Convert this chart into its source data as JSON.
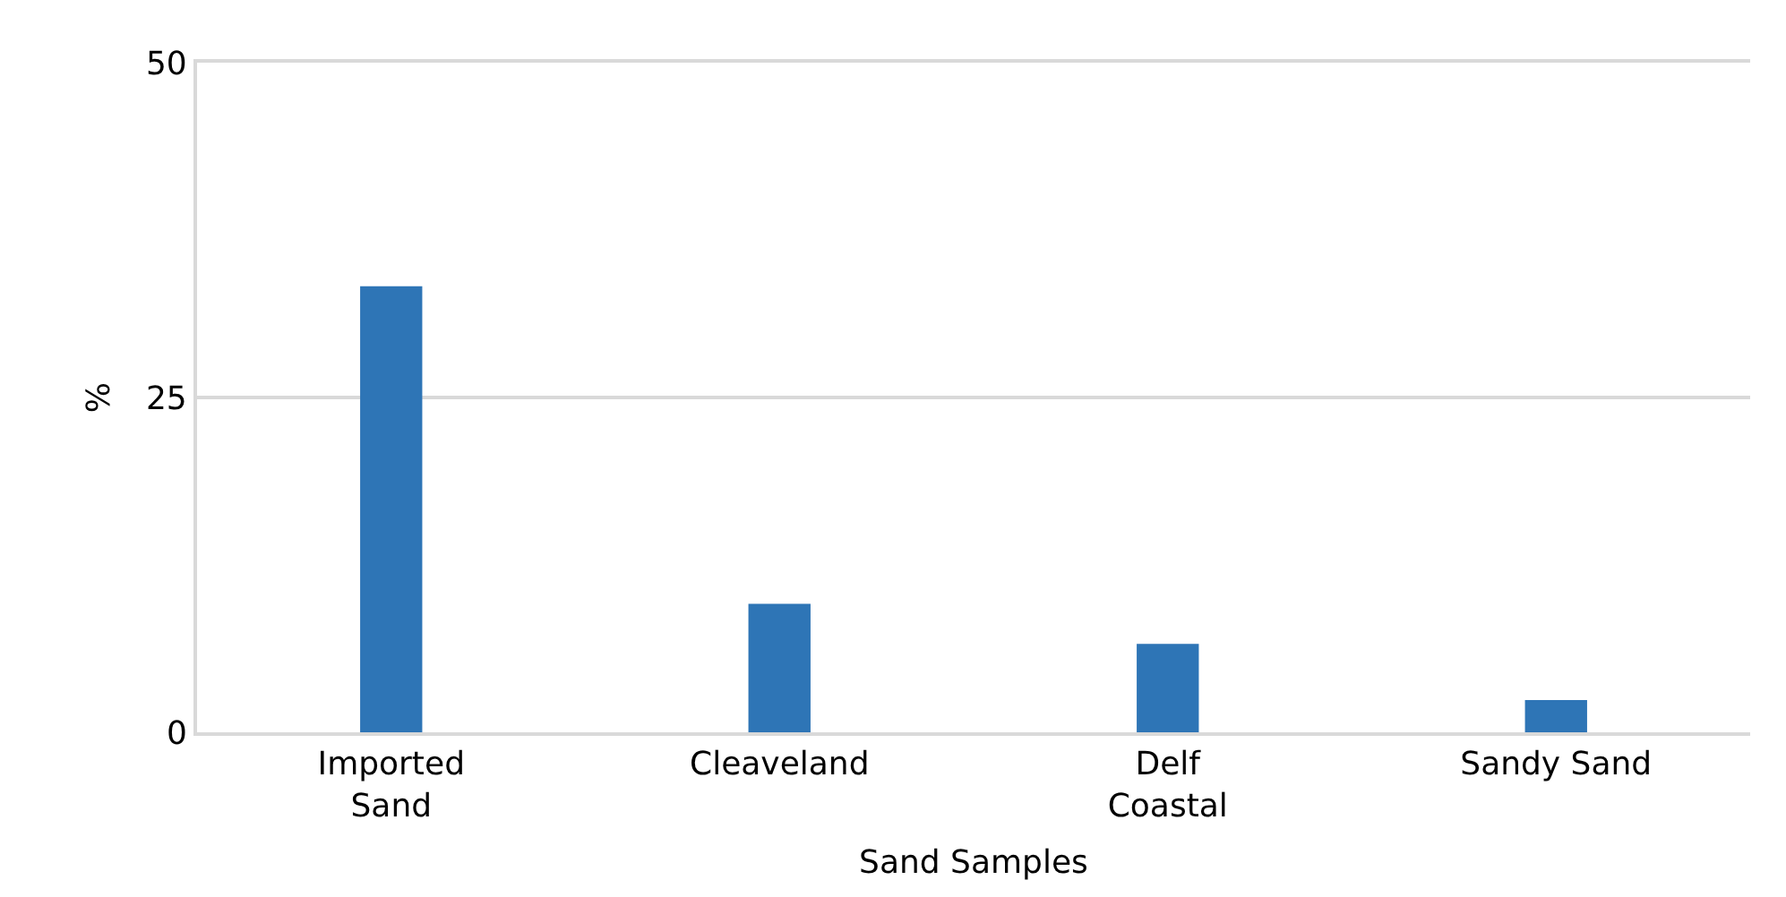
{
  "chart_data": {
    "type": "bar",
    "xlabel": "Sand Samples",
    "ylabel": "%",
    "categories": [
      "Imported Sand",
      "Cleaveland",
      "Delf Coastal",
      "Sandy Sand"
    ],
    "values": [
      33.3,
      9.6,
      6.6,
      2.4
    ],
    "color": "#2e75b6",
    "ylim": [
      0,
      50
    ],
    "yticks": [
      0,
      25,
      50
    ],
    "grid": "y"
  }
}
